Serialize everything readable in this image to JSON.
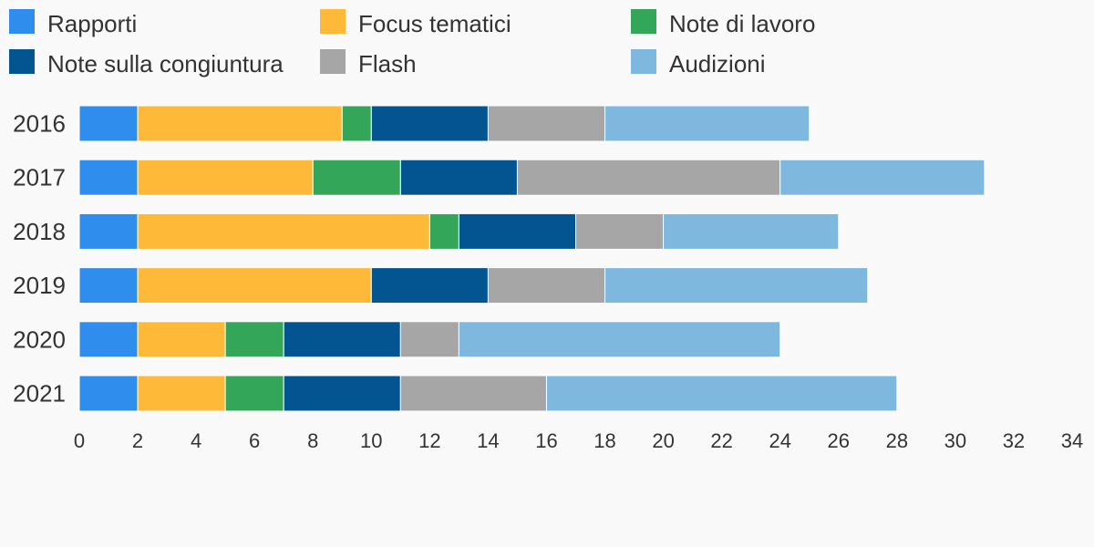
{
  "chart_data": {
    "type": "bar",
    "orientation": "horizontal",
    "stacked": true,
    "title": "",
    "xlabel": "",
    "ylabel": "",
    "categories": [
      "2016",
      "2017",
      "2018",
      "2019",
      "2020",
      "2021"
    ],
    "series": [
      {
        "name": "Rapporti",
        "color": "#2f8ded",
        "values": [
          2,
          2,
          2,
          2,
          2,
          2
        ]
      },
      {
        "name": "Focus tematici",
        "color": "#ffb938",
        "values": [
          7,
          6,
          10,
          8,
          3,
          3
        ]
      },
      {
        "name": "Note di lavoro",
        "color": "#34a65a",
        "values": [
          1,
          3,
          1,
          0,
          2,
          2
        ]
      },
      {
        "name": "Note sulla congiuntura",
        "color": "#035591",
        "values": [
          4,
          4,
          4,
          4,
          4,
          4
        ]
      },
      {
        "name": "Flash",
        "color": "#a6a6a6",
        "values": [
          4,
          9,
          3,
          4,
          2,
          5
        ]
      },
      {
        "name": "Audizioni",
        "color": "#7eb8de",
        "values": [
          7,
          7,
          6,
          9,
          11,
          12
        ]
      }
    ],
    "xlim": [
      0,
      34
    ],
    "xticks": [
      "0",
      "2",
      "4",
      "6",
      "8",
      "10",
      "12",
      "14",
      "16",
      "18",
      "20",
      "22",
      "24",
      "26",
      "28",
      "30",
      "32",
      "34"
    ],
    "grid": false,
    "legend_position": "top"
  }
}
